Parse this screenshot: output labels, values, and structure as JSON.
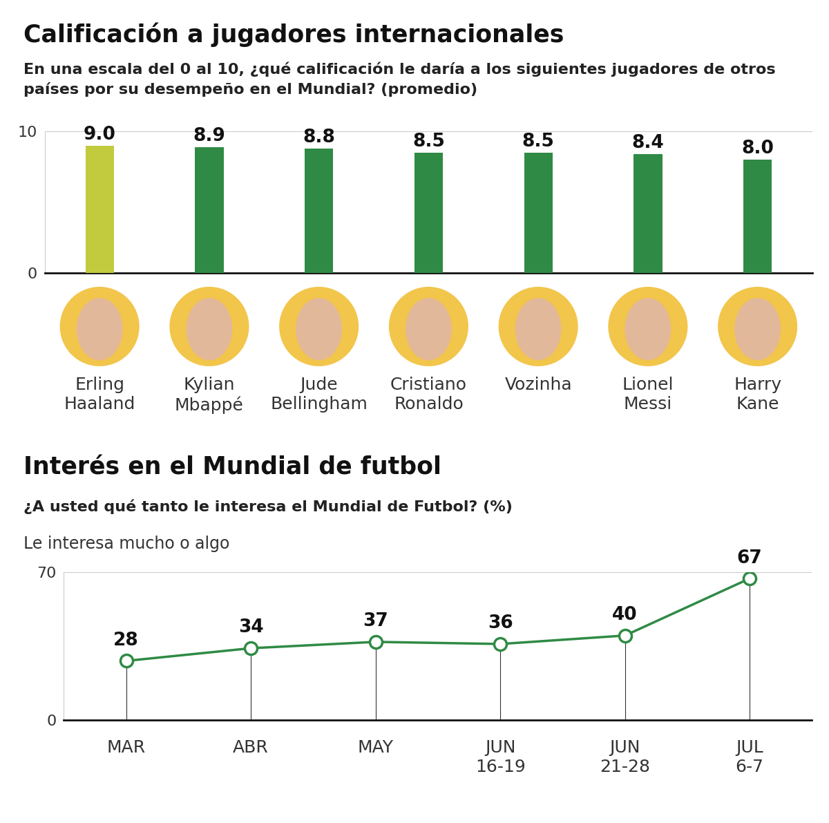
{
  "chart_data": [
    {
      "type": "bar",
      "title": "Calificación a jugadores internacionales",
      "subtitle": "En una escala del 0 al 10, ¿qué calificación le daría a los siguientes jugadores de otros países por su desempeño en el Mundial? (promedio)",
      "categories": [
        "Erling Haaland",
        "Kylian Mbappé",
        "Jude Bellingham",
        "Cristiano Ronaldo",
        "Vozinha",
        "Lionel Messi",
        "Harry Kane"
      ],
      "values": [
        9.0,
        8.9,
        8.8,
        8.5,
        8.5,
        8.4,
        8.0
      ],
      "value_labels": [
        "9.0",
        "8.9",
        "8.8",
        "8.5",
        "8.5",
        "8.4",
        "8.0"
      ],
      "colors": [
        "#c2cb3e",
        "#2f8a45",
        "#2f8a45",
        "#2f8a45",
        "#2f8a45",
        "#2f8a45",
        "#2f8a45"
      ],
      "ylim": [
        0,
        10
      ],
      "yticks": [
        0,
        10
      ],
      "grid": true,
      "data_labels": true
    },
    {
      "type": "line",
      "title": "Interés en el Mundial de futbol",
      "subtitle": "¿A usted qué tanto le interesa el Mundial de Futbol? (%)",
      "y_label": "Le interesa mucho o algo",
      "categories": [
        "MAR",
        "ABR",
        "MAY",
        "JUN 16-19",
        "JUN 21-28",
        "JUL 6-7"
      ],
      "values": [
        28,
        34,
        37,
        36,
        40,
        67
      ],
      "color": "#2f8a45",
      "marker": "o",
      "ylim": [
        0,
        70
      ],
      "yticks": [
        0,
        70
      ],
      "grid": true,
      "data_labels": true
    }
  ]
}
